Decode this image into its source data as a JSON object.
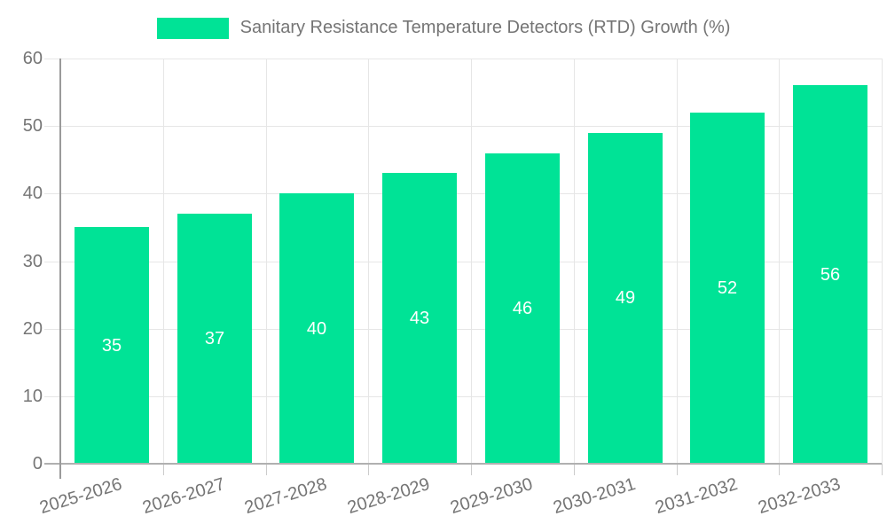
{
  "chart_data": {
    "type": "bar",
    "title": "Sanitary Resistance Temperature Detectors (RTD) Growth (%)",
    "categories": [
      "2025-2026",
      "2026-2027",
      "2027-2028",
      "2028-2029",
      "2029-2030",
      "2030-2031",
      "2031-2032",
      "2032-2033"
    ],
    "series": [
      {
        "name": "Sanitary Resistance Temperature Detectors (RTD) Growth (%)",
        "values": [
          35,
          37,
          40,
          43,
          46,
          49,
          52,
          56
        ]
      }
    ],
    "value_labels_shown": true,
    "xlabel": "",
    "ylabel": "",
    "ylim": [
      0,
      60
    ],
    "y_ticks": [
      0,
      10,
      20,
      30,
      40,
      50,
      60
    ],
    "grid": true,
    "legend_position": "top",
    "colors": {
      "bar": "#00E396",
      "value_label": "#ffffff",
      "axis_text": "#757575",
      "gridline": "#e6e6e6",
      "axis_line": "#9a9a9a"
    }
  }
}
